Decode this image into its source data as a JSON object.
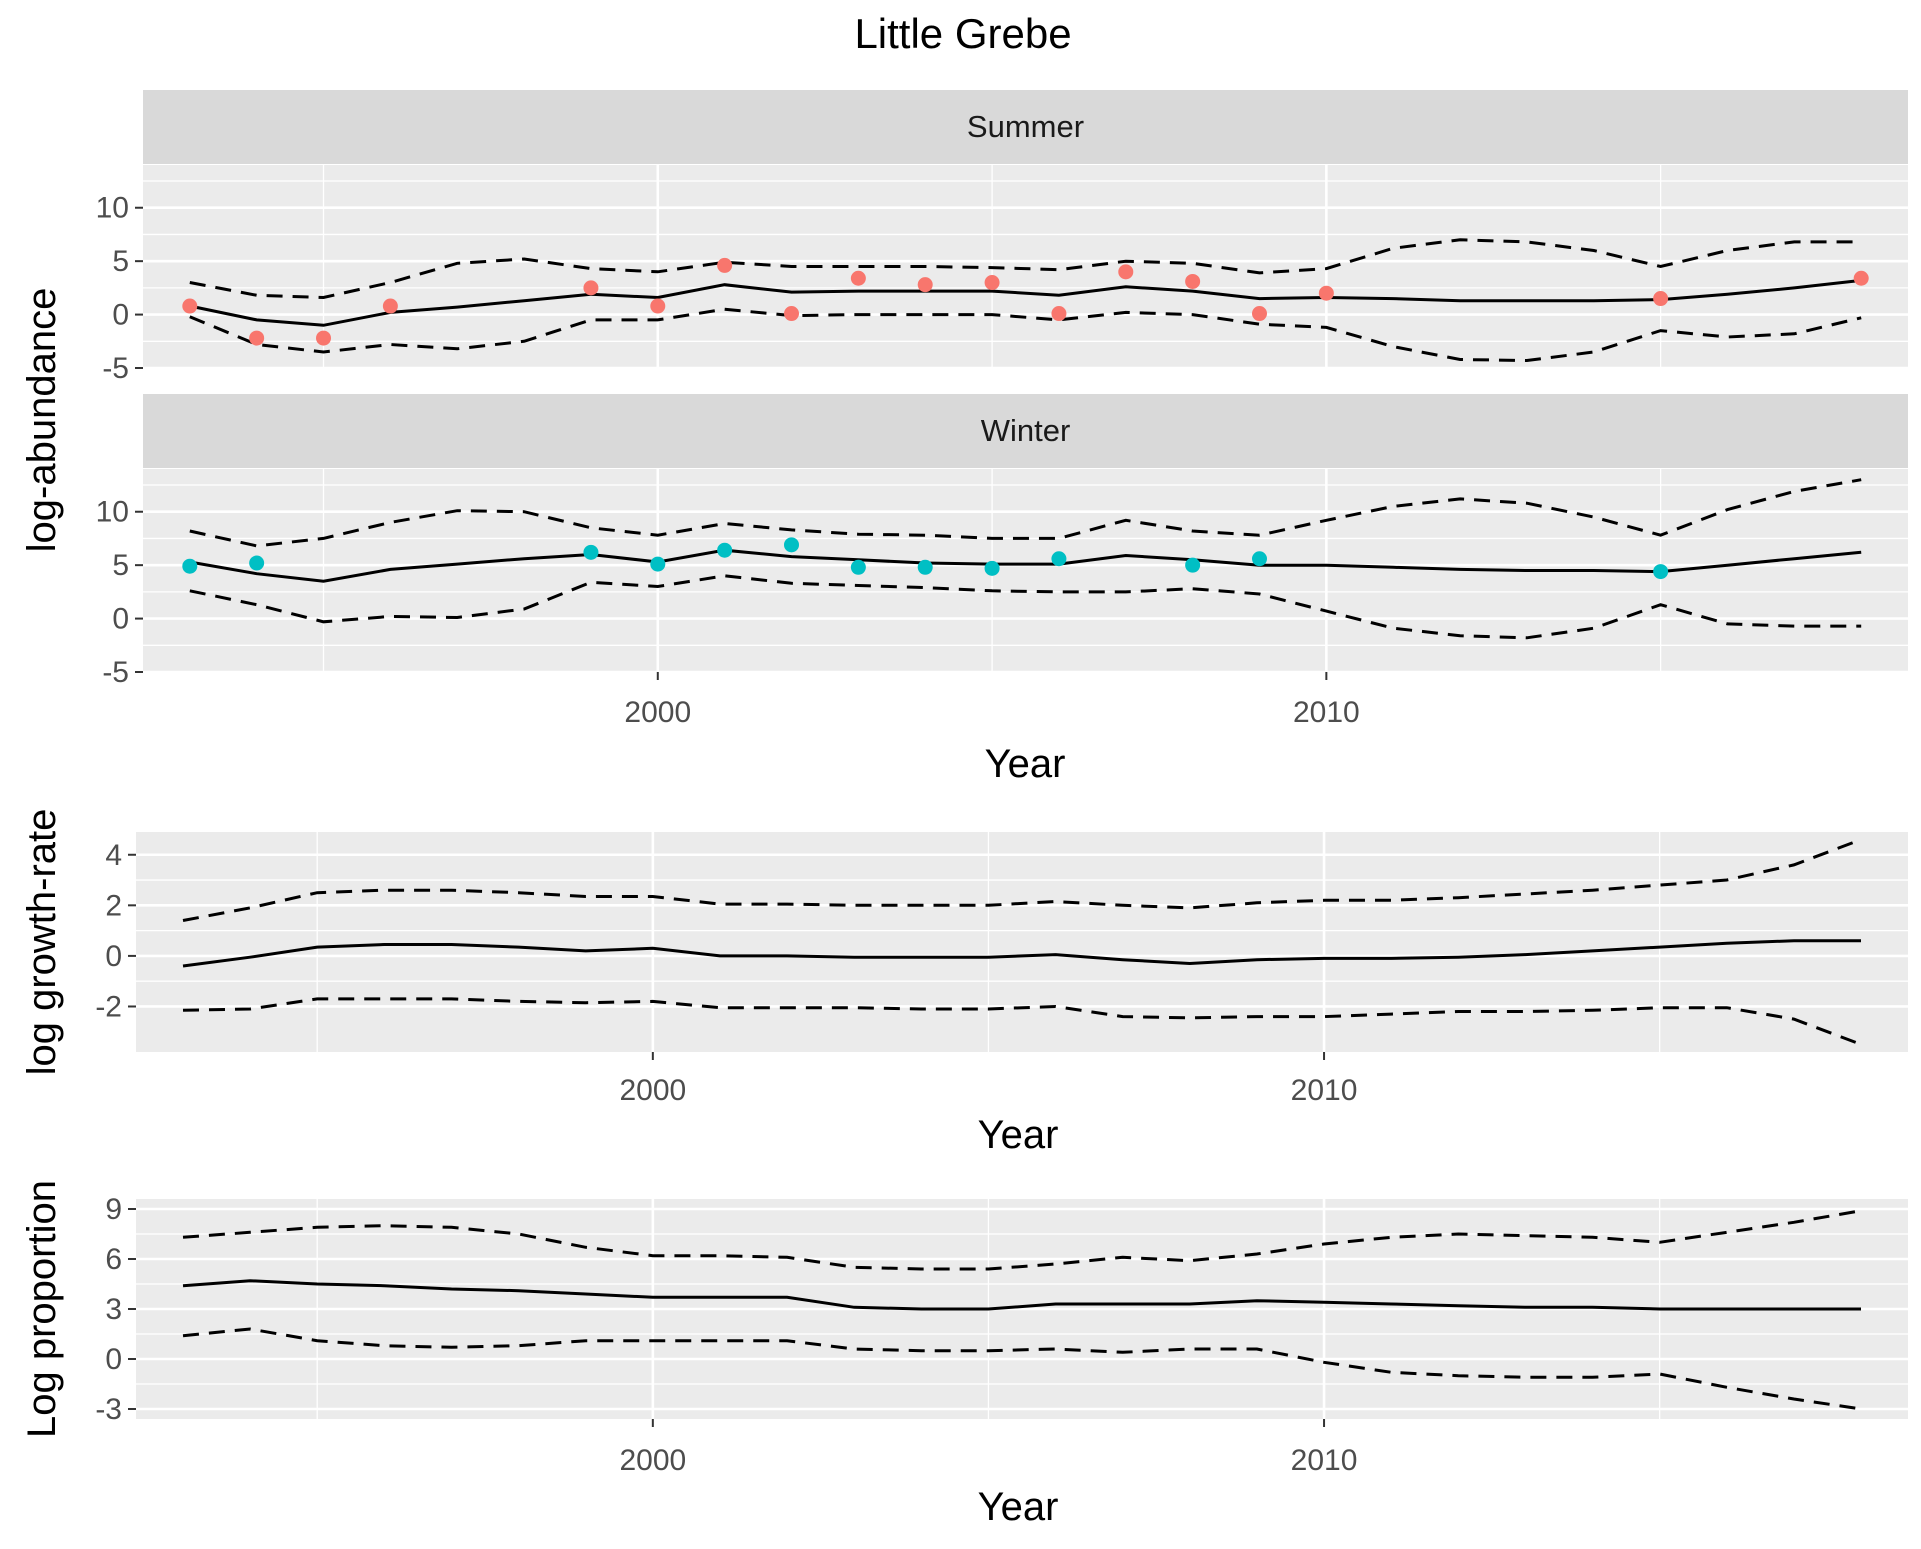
{
  "title": "Little Grebe",
  "colors": {
    "panel_bg": "#ebebeb",
    "strip_bg": "#d9d9d9",
    "grid": "#ffffff",
    "line": "#000000",
    "summer_points": "#f8766d",
    "winter_points": "#00bfc4",
    "tick_text": "#4d4d4d"
  },
  "chart_data": [
    {
      "type": "line",
      "ylabel": "log-abundance",
      "xlabel": "Year",
      "xlim": [
        1992.3,
        2018.7
      ],
      "x_ticks": [
        2000,
        2010
      ],
      "x_tick_labels": [
        "2000",
        "2010"
      ],
      "facets": [
        {
          "strip": "Summer",
          "ylim": [
            -5,
            14
          ],
          "y_ticks": [
            -5,
            0,
            5,
            10
          ],
          "y_tick_labels": [
            "-5",
            "0",
            "5",
            "10"
          ],
          "x": [
            1993,
            1994,
            1995,
            1996,
            1997,
            1998,
            1999,
            2000,
            2001,
            2002,
            2003,
            2004,
            2005,
            2006,
            2007,
            2008,
            2009,
            2010,
            2011,
            2012,
            2013,
            2014,
            2015,
            2016,
            2017,
            2018
          ],
          "series": [
            {
              "role": "estimate",
              "style": "solid",
              "values": [
                0.8,
                -0.5,
                -1.0,
                0.2,
                0.7,
                1.3,
                1.9,
                1.6,
                2.8,
                2.1,
                2.2,
                2.2,
                2.2,
                1.8,
                2.6,
                2.2,
                1.5,
                1.6,
                1.5,
                1.3,
                1.3,
                1.3,
                1.4,
                1.9,
                2.5,
                3.2
              ]
            },
            {
              "role": "upper",
              "style": "dashed",
              "values": [
                3.0,
                1.8,
                1.6,
                3.0,
                4.8,
                5.2,
                4.3,
                4.0,
                4.9,
                4.5,
                4.5,
                4.5,
                4.4,
                4.2,
                5.0,
                4.8,
                3.9,
                4.3,
                6.2,
                7.0,
                6.8,
                6.0,
                4.5,
                6.0,
                6.8,
                6.8
              ]
            },
            {
              "role": "lower",
              "style": "dashed",
              "values": [
                -0.2,
                -2.8,
                -3.5,
                -2.8,
                -3.2,
                -2.5,
                -0.5,
                -0.5,
                0.5,
                -0.1,
                0.0,
                0.0,
                0.0,
                -0.5,
                0.2,
                0.0,
                -0.9,
                -1.2,
                -3.0,
                -4.2,
                -4.3,
                -3.5,
                -1.5,
                -2.1,
                -1.8,
                -0.3
              ]
            }
          ],
          "points": {
            "x": [
              1993,
              1994,
              1995,
              1996,
              1999,
              2000,
              2001,
              2002,
              2003,
              2004,
              2005,
              2006,
              2007,
              2008,
              2009,
              2010,
              2015,
              2018
            ],
            "y": [
              0.8,
              -2.2,
              -2.2,
              0.8,
              2.5,
              0.8,
              4.6,
              0.1,
              3.4,
              2.8,
              3.0,
              0.1,
              4.0,
              3.1,
              0.1,
              2.0,
              1.5,
              3.4
            ]
          }
        },
        {
          "strip": "Winter",
          "ylim": [
            -5,
            14
          ],
          "y_ticks": [
            -5,
            0,
            5,
            10
          ],
          "y_tick_labels": [
            "-5",
            "0",
            "5",
            "10"
          ],
          "x": [
            1993,
            1994,
            1995,
            1996,
            1997,
            1998,
            1999,
            2000,
            2001,
            2002,
            2003,
            2004,
            2005,
            2006,
            2007,
            2008,
            2009,
            2010,
            2011,
            2012,
            2013,
            2014,
            2015,
            2016,
            2017,
            2018
          ],
          "series": [
            {
              "role": "estimate",
              "style": "solid",
              "values": [
                5.3,
                4.2,
                3.5,
                4.6,
                5.1,
                5.6,
                6.0,
                5.3,
                6.4,
                5.8,
                5.5,
                5.2,
                5.1,
                5.1,
                5.9,
                5.5,
                5.0,
                5.0,
                4.8,
                4.6,
                4.5,
                4.5,
                4.4,
                5.0,
                5.6,
                6.2
              ]
            },
            {
              "role": "upper",
              "style": "dashed",
              "values": [
                8.2,
                6.8,
                7.5,
                9.0,
                10.1,
                10.0,
                8.5,
                7.8,
                8.9,
                8.3,
                7.9,
                7.8,
                7.5,
                7.5,
                9.2,
                8.2,
                7.8,
                9.2,
                10.5,
                11.2,
                10.8,
                9.5,
                7.8,
                10.2,
                11.9,
                13.0
              ]
            },
            {
              "role": "lower",
              "style": "dashed",
              "values": [
                2.6,
                1.3,
                -0.3,
                0.2,
                0.1,
                0.9,
                3.4,
                3.0,
                4.0,
                3.3,
                3.1,
                2.9,
                2.6,
                2.5,
                2.5,
                2.8,
                2.3,
                0.7,
                -0.9,
                -1.6,
                -1.8,
                -0.9,
                1.3,
                -0.5,
                -0.7,
                -0.7
              ]
            }
          ],
          "points": {
            "x": [
              1993,
              1994,
              1999,
              2000,
              2001,
              2002,
              2003,
              2004,
              2005,
              2006,
              2008,
              2009,
              2015
            ],
            "y": [
              4.9,
              5.2,
              6.2,
              5.1,
              6.4,
              6.9,
              4.8,
              4.8,
              4.7,
              5.6,
              5.0,
              5.6,
              4.4
            ]
          }
        }
      ]
    },
    {
      "type": "line",
      "ylabel": "log growth-rate",
      "xlabel": "Year",
      "xlim": [
        1992.3,
        2018.7
      ],
      "x_ticks": [
        2000,
        2010
      ],
      "x_tick_labels": [
        "2000",
        "2010"
      ],
      "ylim": [
        -3.8,
        4.9
      ],
      "y_ticks": [
        -2,
        0,
        2,
        4
      ],
      "y_tick_labels": [
        "-2",
        "0",
        "2",
        "4"
      ],
      "x": [
        1993,
        1994,
        1995,
        1996,
        1997,
        1998,
        1999,
        2000,
        2001,
        2002,
        2003,
        2004,
        2005,
        2006,
        2007,
        2008,
        2009,
        2010,
        2011,
        2012,
        2013,
        2014,
        2015,
        2016,
        2017,
        2018
      ],
      "series": [
        {
          "role": "estimate",
          "style": "solid",
          "values": [
            -0.4,
            -0.05,
            0.35,
            0.45,
            0.45,
            0.35,
            0.2,
            0.3,
            0.0,
            0.0,
            -0.05,
            -0.05,
            -0.05,
            0.05,
            -0.15,
            -0.3,
            -0.15,
            -0.1,
            -0.1,
            -0.05,
            0.05,
            0.2,
            0.35,
            0.5,
            0.6,
            0.6
          ]
        },
        {
          "role": "upper",
          "style": "dashed",
          "values": [
            1.4,
            1.9,
            2.5,
            2.6,
            2.6,
            2.5,
            2.35,
            2.35,
            2.05,
            2.05,
            2.0,
            2.0,
            2.0,
            2.15,
            2.0,
            1.9,
            2.1,
            2.2,
            2.2,
            2.3,
            2.45,
            2.6,
            2.8,
            3.0,
            3.6,
            4.6
          ]
        },
        {
          "role": "lower",
          "style": "dashed",
          "values": [
            -2.15,
            -2.1,
            -1.7,
            -1.7,
            -1.7,
            -1.8,
            -1.85,
            -1.8,
            -2.05,
            -2.05,
            -2.05,
            -2.1,
            -2.1,
            -2.0,
            -2.4,
            -2.45,
            -2.4,
            -2.4,
            -2.3,
            -2.2,
            -2.2,
            -2.15,
            -2.05,
            -2.05,
            -2.5,
            -3.5
          ]
        }
      ]
    },
    {
      "type": "line",
      "ylabel": "Log proportion",
      "xlabel": "Year",
      "xlim": [
        1992.3,
        2018.7
      ],
      "x_ticks": [
        2000,
        2010
      ],
      "x_tick_labels": [
        "2000",
        "2010"
      ],
      "ylim": [
        -3.6,
        9.6
      ],
      "y_ticks": [
        -3,
        0,
        3,
        6,
        9
      ],
      "y_tick_labels": [
        "-3",
        "0",
        "3",
        "6",
        "9"
      ],
      "x": [
        1993,
        1994,
        1995,
        1996,
        1997,
        1998,
        1999,
        2000,
        2001,
        2002,
        2003,
        2004,
        2005,
        2006,
        2007,
        2008,
        2009,
        2010,
        2011,
        2012,
        2013,
        2014,
        2015,
        2016,
        2017,
        2018
      ],
      "series": [
        {
          "role": "estimate",
          "style": "solid",
          "values": [
            4.4,
            4.7,
            4.5,
            4.4,
            4.2,
            4.1,
            3.9,
            3.7,
            3.7,
            3.7,
            3.1,
            3.0,
            3.0,
            3.3,
            3.3,
            3.3,
            3.5,
            3.4,
            3.3,
            3.2,
            3.1,
            3.1,
            3.0,
            3.0,
            3.0,
            3.0
          ]
        },
        {
          "role": "upper",
          "style": "dashed",
          "values": [
            7.3,
            7.6,
            7.9,
            8.0,
            7.9,
            7.5,
            6.7,
            6.2,
            6.2,
            6.1,
            5.5,
            5.4,
            5.4,
            5.7,
            6.1,
            5.9,
            6.3,
            6.9,
            7.3,
            7.5,
            7.4,
            7.3,
            7.0,
            7.6,
            8.2,
            8.9
          ]
        },
        {
          "role": "lower",
          "style": "dashed",
          "values": [
            1.4,
            1.8,
            1.1,
            0.8,
            0.7,
            0.8,
            1.1,
            1.1,
            1.1,
            1.1,
            0.6,
            0.5,
            0.5,
            0.6,
            0.4,
            0.6,
            0.6,
            -0.2,
            -0.8,
            -1.0,
            -1.1,
            -1.1,
            -0.9,
            -1.7,
            -2.4,
            -3.0
          ]
        }
      ]
    }
  ]
}
